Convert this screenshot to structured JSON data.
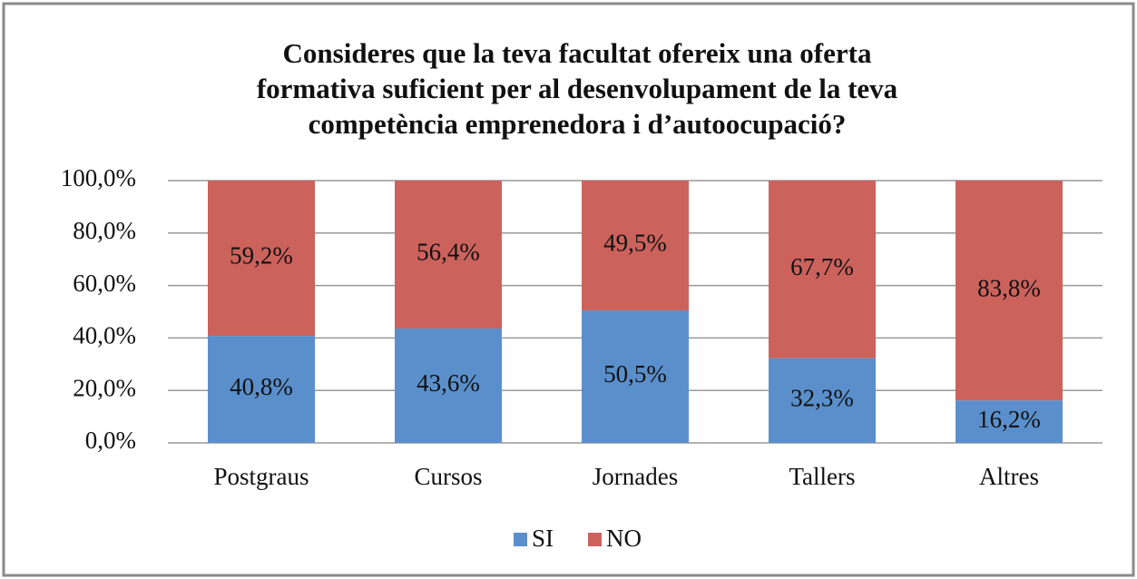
{
  "chart_data": {
    "type": "stacked_bar",
    "title": [
      "Consideres que la teva facultat ofereix una oferta",
      "formativa suficient per al desenvolupament de la teva",
      "competència emprenedora i d’autoocupació?"
    ],
    "categories": [
      "Postgraus",
      "Cursos",
      "Jornades",
      "Tallers",
      "Altres"
    ],
    "series": [
      {
        "name": "SI",
        "color": "#5a8fcb",
        "values": [
          40.8,
          43.6,
          50.5,
          32.3,
          16.2
        ],
        "value_labels": [
          "40,8%",
          "43,6%",
          "50,5%",
          "32,3%",
          "16,2%"
        ]
      },
      {
        "name": "NO",
        "color": "#cc625c",
        "values": [
          59.2,
          56.4,
          49.5,
          67.7,
          83.8
        ],
        "value_labels": [
          "59,2%",
          "56,4%",
          "49,5%",
          "67,7%",
          "83,8%"
        ]
      }
    ],
    "ylim": [
      0,
      100
    ],
    "yticks": [
      {
        "value": 0,
        "label": "0,0%"
      },
      {
        "value": 20,
        "label": "20,0%"
      },
      {
        "value": 40,
        "label": "40,0%"
      },
      {
        "value": 60,
        "label": "60,0%"
      },
      {
        "value": 80,
        "label": "80,0%"
      },
      {
        "value": 100,
        "label": "100,0%"
      }
    ],
    "grid": true,
    "legend": "bottom"
  }
}
